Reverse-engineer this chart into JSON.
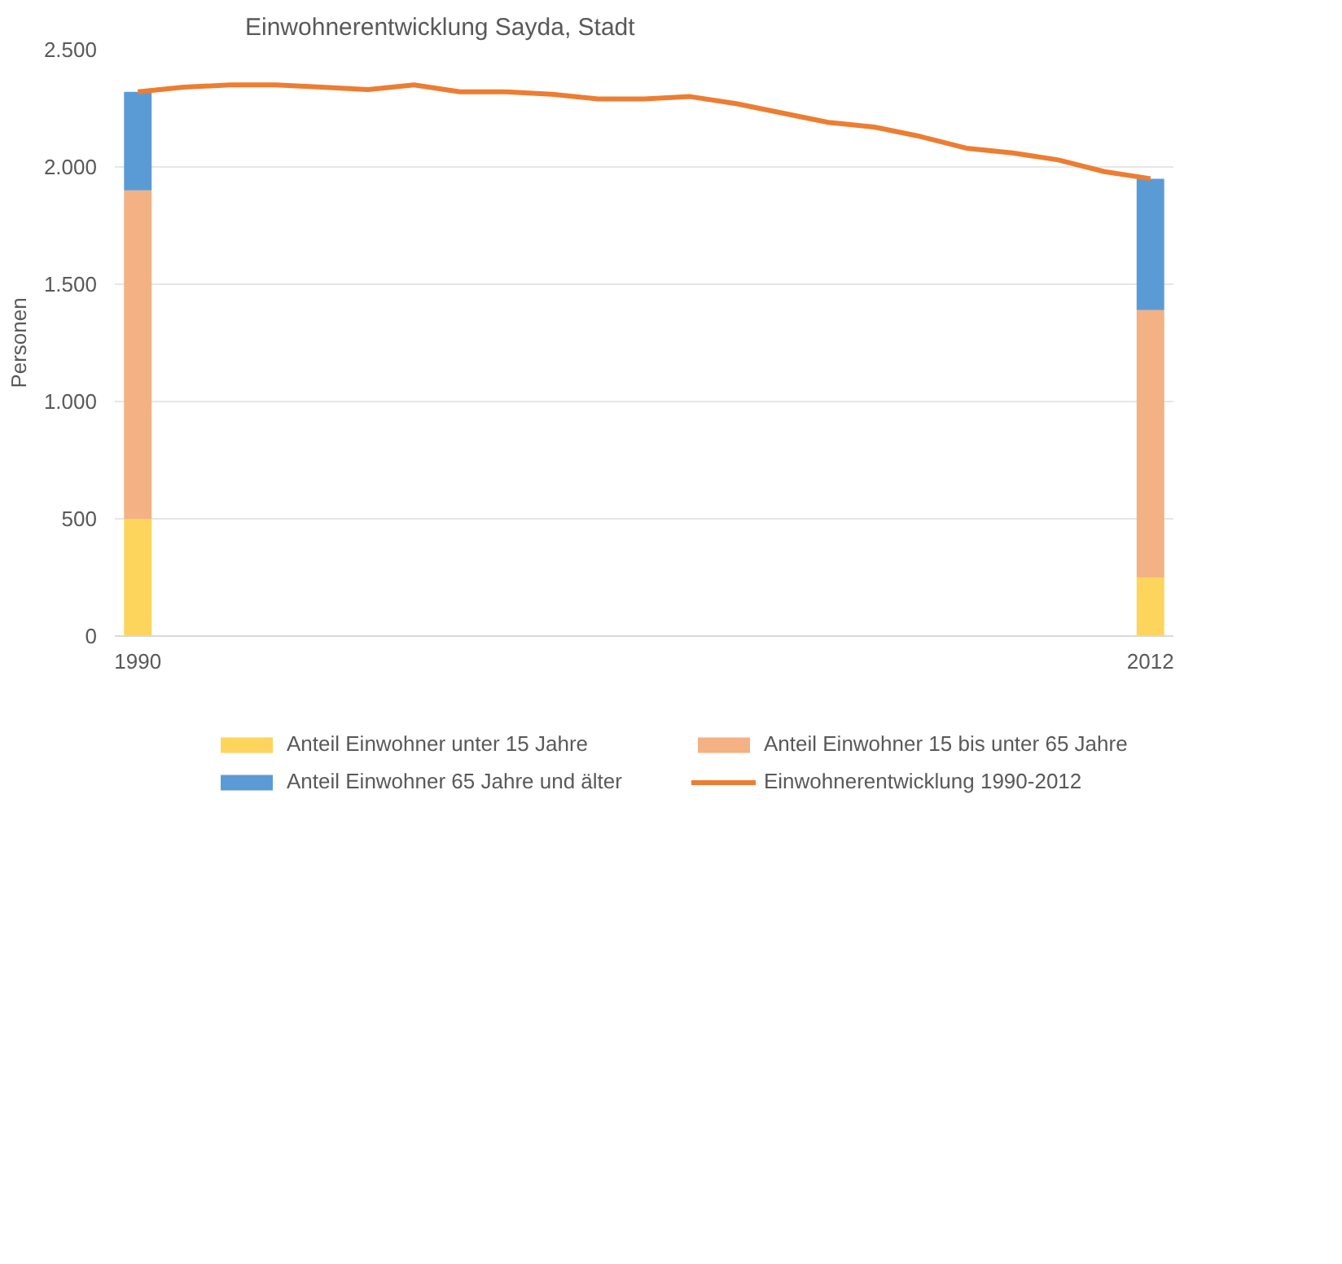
{
  "chart_data": {
    "type": "bar",
    "title": "Einwohnerentwicklung Sayda, Stadt",
    "ylabel": "Personen",
    "stacked": true,
    "x": [
      1990,
      2012
    ],
    "series": [
      {
        "name": "Anteil Einwohner unter 15 Jahre",
        "color": "#fdd55c",
        "values": [
          500,
          250
        ]
      },
      {
        "name": "Anteil Einwohner 15 bis unter 65 Jahre",
        "color": "#f4b183",
        "values": [
          1400,
          1140
        ]
      },
      {
        "name": "Anteil Einwohner 65 Jahre und älter",
        "color": "#5b9bd5",
        "values": [
          420,
          560
        ]
      },
      {
        "name": "Einwohnerentwicklung 1990-2012",
        "type": "line",
        "color": "#ed7d31",
        "x": [
          1990,
          1991,
          1992,
          1993,
          1994,
          1995,
          1996,
          1997,
          1998,
          1999,
          2000,
          2001,
          2002,
          2003,
          2004,
          2005,
          2006,
          2007,
          2008,
          2009,
          2010,
          2011,
          2012
        ],
        "values": [
          2320,
          2340,
          2350,
          2350,
          2340,
          2330,
          2350,
          2320,
          2320,
          2310,
          2290,
          2290,
          2300,
          2270,
          2230,
          2190,
          2170,
          2130,
          2080,
          2060,
          2030,
          1980,
          1950
        ]
      }
    ],
    "xlim": [
      1989.5,
      2012.5
    ],
    "xticks": [
      1990,
      2012
    ],
    "ylim": [
      0,
      2500
    ],
    "yticks": [
      0,
      500,
      {
        "value": 1000,
        "label": "1.000"
      },
      {
        "value": 1500,
        "label": "1.500"
      },
      {
        "value": 2000,
        "label": "2.000"
      },
      {
        "value": 2500,
        "label": "2.500"
      }
    ],
    "grid": "y",
    "legend": "bottom"
  }
}
